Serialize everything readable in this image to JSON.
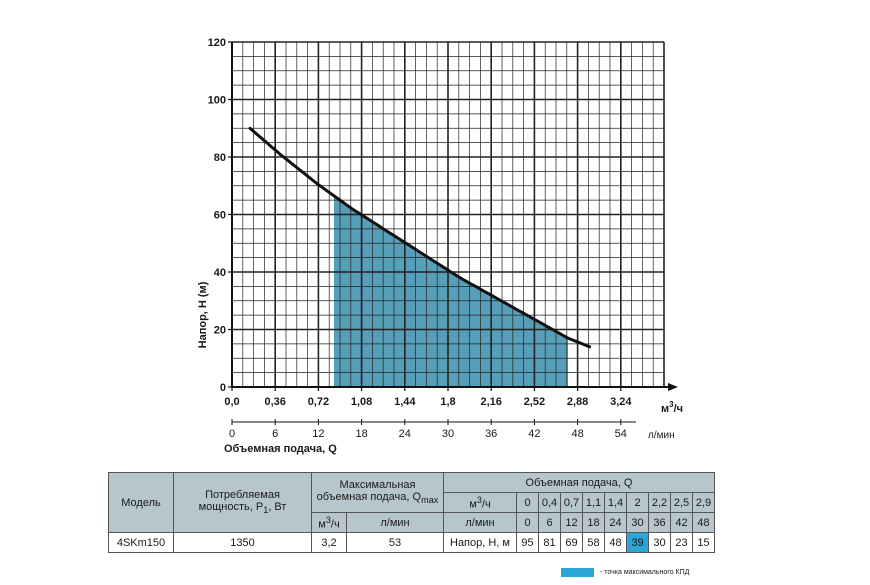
{
  "chart_data": {
    "type": "line",
    "ylabel": "Напор, H (м)",
    "xlabel": "Объемная подача, Q",
    "x_unit": "м³/ч",
    "x2_unit": "л/мин",
    "xlim": [
      0,
      3.6
    ],
    "ylim": [
      0,
      120
    ],
    "x_ticks": [
      "0,0",
      "0,36",
      "0,72",
      "1,08",
      "1,44",
      "1,8",
      "2,16",
      "2,52",
      "2,88",
      "3,24"
    ],
    "x2_ticks": [
      "0",
      "6",
      "12",
      "18",
      "24",
      "30",
      "36",
      "42",
      "48",
      "54"
    ],
    "y_ticks": [
      "0",
      "20",
      "40",
      "60",
      "80",
      "100",
      "120"
    ],
    "grid": true,
    "series": [
      {
        "x": [
          0.15,
          0.4,
          0.7,
          1.0,
          1.3,
          1.6,
          1.9,
          2.2,
          2.5,
          2.8,
          2.98
        ],
        "y": [
          90,
          81,
          71,
          62,
          54,
          46,
          38,
          31,
          24,
          17,
          14
        ],
        "color": "#111111"
      }
    ],
    "shaded_region": {
      "x_from": 0.85,
      "x_to": 2.8,
      "color": "#4e99b4"
    }
  },
  "table": {
    "model_header": "Модель",
    "power_header_line1": "Потребляемая",
    "power_header_line2": "мощность, P",
    "power_header_sub": "1",
    "power_header_unit": ", Вт",
    "maxflow_header_line1": "Максимальная",
    "maxflow_header_line2": "объемная подача, Q",
    "maxflow_header_sub": "max",
    "maxflow_unit1": "м",
    "maxflow_unit1_sup": "3",
    "maxflow_unit1_end": "/ч",
    "maxflow_unit2": "л/мин",
    "flow_header": "Объемная подача, Q",
    "row_m3h_label": "м",
    "row_m3h_sup": "3",
    "row_m3h_end": "/ч",
    "row_lmin_label": "л/мин",
    "row_head_label": "Напор, H, м",
    "m3h_values": [
      "0",
      "0,4",
      "0,7",
      "1,1",
      "1,4",
      "2",
      "2,2",
      "2,5",
      "2,9"
    ],
    "lmin_values": [
      "0",
      "6",
      "12",
      "18",
      "24",
      "30",
      "36",
      "42",
      "48"
    ],
    "model": "4SKm150",
    "power": "1350",
    "qmax_m3h": "3,2",
    "qmax_lmin": "53",
    "head_values": [
      "95",
      "81",
      "69",
      "58",
      "48",
      "39",
      "30",
      "23",
      "15"
    ],
    "best_efficiency_index": 5
  },
  "legend": {
    "text": "- точка максимального КПД",
    "color": "#2aa6d6"
  }
}
